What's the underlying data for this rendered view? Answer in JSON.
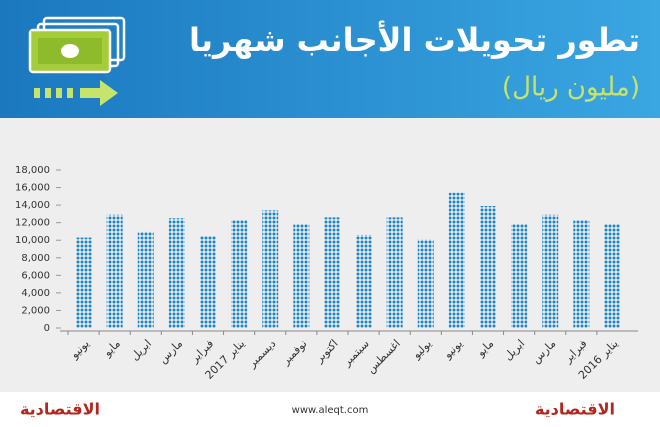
{
  "chart_data": {
    "type": "bar",
    "title": "تطور تحويلات الأجانب شهريا",
    "subtitle": "(مليون ريال)",
    "categories": [
      "يونيو",
      "مايو",
      "ابريل",
      "مارس",
      "فبراير",
      "يناير 2017",
      "ديسمبر",
      "نوفمبر",
      "اكتوبر",
      "سبتمبر",
      "اغسطس",
      "يوليو",
      "يونيو",
      "مايو",
      "ابريل",
      "مارس",
      "فبراير",
      "يناير 2016"
    ],
    "values": [
      10300,
      12900,
      11000,
      12500,
      10500,
      12300,
      13400,
      11800,
      12600,
      10600,
      12600,
      10100,
      15400,
      13900,
      11900,
      12900,
      12300,
      11800
    ],
    "color": "#1a84cf",
    "ylim": [
      0,
      18000
    ],
    "yticks": [
      0,
      {
        "value": 2000,
        "label": "2,000"
      },
      {
        "value": 4000,
        "label": "4,000"
      },
      {
        "value": 6000,
        "label": "6,000"
      },
      {
        "value": 8000,
        "label": "8,000"
      },
      {
        "value": 10000,
        "label": "10,000"
      },
      {
        "value": 12000,
        "label": "12,000"
      },
      {
        "value": 14000,
        "label": "14,000"
      },
      {
        "value": 16000,
        "label": "16,000"
      },
      {
        "value": 18000,
        "label": "18,000"
      }
    ],
    "grid": false
  },
  "footer": {
    "website": "www.aleqt.com",
    "logo_left": "الاقتصادية",
    "logo_right": "الاقتصادية"
  }
}
